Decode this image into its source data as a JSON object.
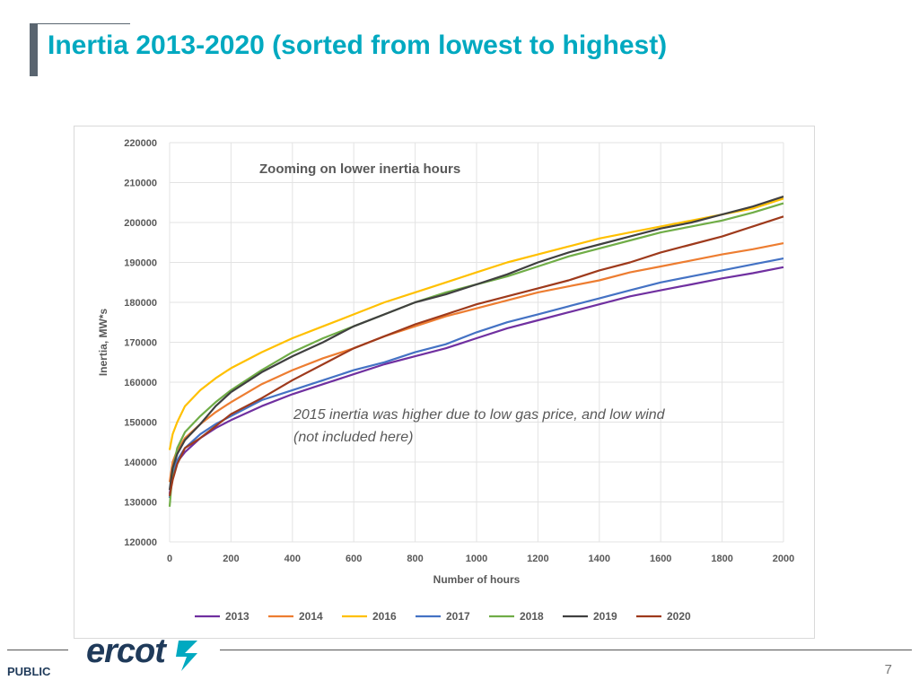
{
  "slide": {
    "title": "Inertia 2013-2020 (sorted from lowest to highest)",
    "footer_label": "PUBLIC",
    "page_number": "7",
    "logo_text": "ercot"
  },
  "colors": {
    "title": "#00a9c0",
    "accent_bar": "#5a6570"
  },
  "chart_data": {
    "type": "line",
    "title": "Zooming on lower inertia hours",
    "xlabel": "Number of hours",
    "ylabel": "Inertia, MW*s",
    "xlim": [
      0,
      2000
    ],
    "ylim": [
      120000,
      220000
    ],
    "x_ticks": [
      0,
      200,
      400,
      600,
      800,
      1000,
      1200,
      1400,
      1600,
      1800,
      2000
    ],
    "y_ticks": [
      120000,
      130000,
      140000,
      150000,
      160000,
      170000,
      180000,
      190000,
      200000,
      210000,
      220000
    ],
    "grid": true,
    "legend_position": "bottom",
    "annotation": "2015 inertia was higher due to low gas price, and low wind\n(not included here)",
    "x": [
      0,
      10,
      25,
      50,
      100,
      150,
      200,
      300,
      400,
      500,
      600,
      700,
      800,
      900,
      1000,
      1100,
      1200,
      1300,
      1400,
      1500,
      1600,
      1700,
      1800,
      1900,
      2000
    ],
    "series": [
      {
        "name": "2013",
        "color": "#7030a0",
        "values": [
          132000,
          137000,
          140000,
          142500,
          146000,
          148500,
          150500,
          154000,
          157000,
          159500,
          162000,
          164500,
          166500,
          168500,
          171000,
          173500,
          175500,
          177500,
          179500,
          181500,
          183000,
          184500,
          186000,
          187300,
          188800
        ]
      },
      {
        "name": "2014",
        "color": "#ed7d31",
        "values": [
          135000,
          140000,
          143000,
          146000,
          149500,
          152500,
          155000,
          159500,
          163000,
          166000,
          168500,
          171500,
          174000,
          176500,
          178500,
          180500,
          182500,
          184000,
          185500,
          187500,
          189000,
          190500,
          192000,
          193300,
          194800
        ]
      },
      {
        "name": "2016",
        "color": "#ffc000",
        "values": [
          143000,
          147000,
          150000,
          154000,
          158000,
          161000,
          163500,
          167500,
          171000,
          174000,
          177000,
          180000,
          182500,
          185000,
          187500,
          190000,
          192000,
          194000,
          196000,
          197500,
          199000,
          200500,
          202000,
          203500,
          206000
        ]
      },
      {
        "name": "2017",
        "color": "#4472c4",
        "values": [
          131000,
          137000,
          140500,
          143500,
          147000,
          149500,
          151500,
          155500,
          158000,
          160500,
          163000,
          165000,
          167500,
          169500,
          172500,
          175000,
          177000,
          179000,
          181000,
          183000,
          185000,
          186500,
          188000,
          189500,
          191000
        ]
      },
      {
        "name": "2018",
        "color": "#70ad47",
        "values": [
          128800,
          138000,
          143500,
          147500,
          151500,
          155000,
          158000,
          163000,
          167500,
          171000,
          174000,
          177000,
          180000,
          182500,
          184500,
          186500,
          189000,
          191500,
          193500,
          195500,
          197500,
          199000,
          200500,
          202500,
          204800
        ]
      },
      {
        "name": "2019",
        "color": "#404040",
        "values": [
          133000,
          138500,
          142000,
          145500,
          149500,
          154000,
          157500,
          162500,
          166500,
          170000,
          174000,
          177000,
          180000,
          182000,
          184500,
          187000,
          190000,
          192500,
          194500,
          196500,
          198500,
          200000,
          202000,
          204000,
          206500
        ]
      },
      {
        "name": "2020",
        "color": "#9e3a1c",
        "values": [
          131500,
          135500,
          139500,
          143500,
          146000,
          149000,
          152000,
          156000,
          160500,
          164500,
          168500,
          171500,
          174500,
          177000,
          179500,
          181500,
          183500,
          185500,
          188000,
          190000,
          192500,
          194500,
          196500,
          199000,
          201500
        ]
      }
    ]
  }
}
